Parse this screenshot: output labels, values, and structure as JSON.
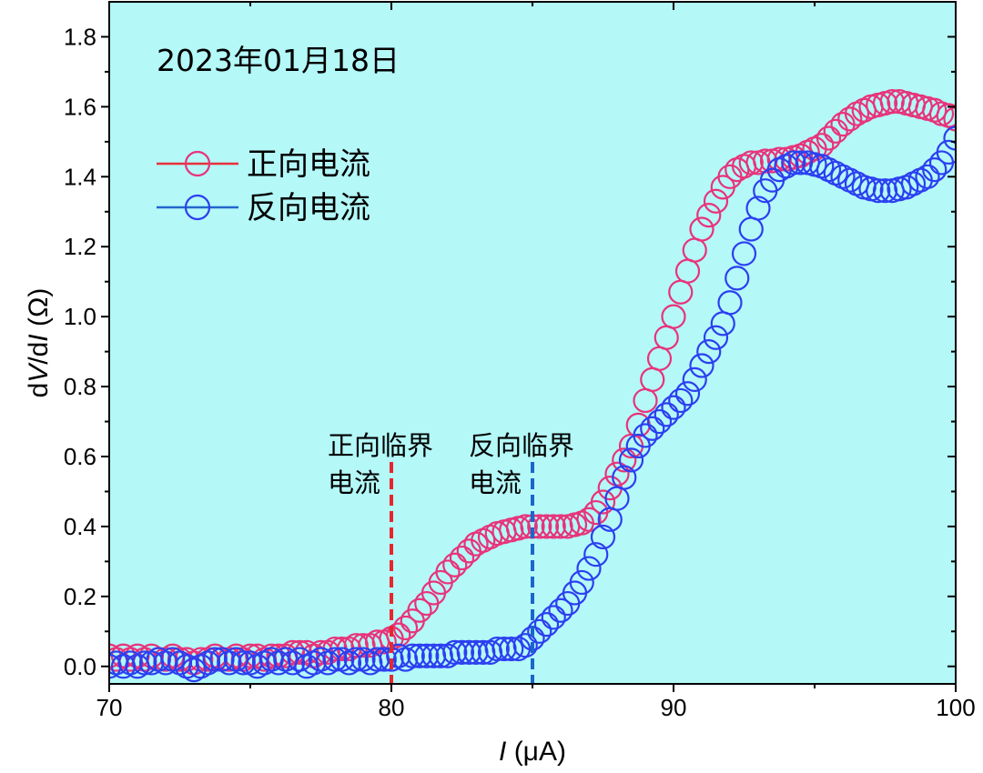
{
  "chart_data": {
    "type": "scatter",
    "xlabel": "I (μA)",
    "ylabel": "dV/dI (Ω)",
    "xlim": [
      70,
      100
    ],
    "ylim": [
      -0.05,
      1.9
    ],
    "xticks": [
      "70",
      "80",
      "90",
      "100"
    ],
    "yticks": [
      "0.0",
      "0.2",
      "0.4",
      "0.6",
      "0.8",
      "1.0",
      "1.2",
      "1.4",
      "1.6",
      "1.8"
    ],
    "grid": false,
    "legend_position": "top-left",
    "date_label": "2023年01月18日",
    "colors": {
      "plot_background": "#b4f8f8",
      "frame": "#000000"
    },
    "x": [
      70,
      70.25,
      70.5,
      70.75,
      71,
      71.25,
      71.5,
      71.75,
      72,
      72.25,
      72.5,
      72.75,
      73,
      73.25,
      73.5,
      73.75,
      74,
      74.25,
      74.5,
      74.75,
      75,
      75.25,
      75.5,
      75.75,
      76,
      76.25,
      76.5,
      76.75,
      77,
      77.25,
      77.5,
      77.75,
      78,
      78.25,
      78.5,
      78.75,
      79,
      79.25,
      79.5,
      79.75,
      80,
      80.25,
      80.5,
      80.75,
      81,
      81.25,
      81.5,
      81.75,
      82,
      82.25,
      82.5,
      82.75,
      83,
      83.25,
      83.5,
      83.75,
      84,
      84.25,
      84.5,
      84.75,
      85,
      85.25,
      85.5,
      85.75,
      86,
      86.25,
      86.5,
      86.75,
      87,
      87.25,
      87.5,
      87.75,
      88,
      88.25,
      88.5,
      88.75,
      89,
      89.25,
      89.5,
      89.75,
      90,
      90.25,
      90.5,
      90.75,
      91,
      91.25,
      91.5,
      91.75,
      92,
      92.25,
      92.5,
      92.75,
      93,
      93.25,
      93.5,
      93.75,
      94,
      94.25,
      94.5,
      94.75,
      95,
      95.25,
      95.5,
      95.75,
      96,
      96.25,
      96.5,
      96.75,
      97,
      97.25,
      97.5,
      97.75,
      98,
      98.25,
      98.5,
      98.75,
      99,
      99.25,
      99.5,
      99.75,
      100
    ],
    "series": [
      {
        "name": "正向电流",
        "marker": "open-circle",
        "color": "#e8337a",
        "line_color": "#e8303a",
        "values": [
          0.03,
          0.02,
          0.03,
          0.02,
          0.03,
          0.02,
          0.03,
          0.02,
          0.02,
          0.03,
          0.02,
          0.02,
          0.01,
          0.02,
          0.02,
          0.03,
          0.02,
          0.02,
          0.03,
          0.02,
          0.03,
          0.03,
          0.02,
          0.03,
          0.03,
          0.03,
          0.04,
          0.04,
          0.04,
          0.03,
          0.04,
          0.04,
          0.05,
          0.05,
          0.05,
          0.06,
          0.06,
          0.06,
          0.07,
          0.07,
          0.08,
          0.09,
          0.11,
          0.13,
          0.16,
          0.18,
          0.21,
          0.24,
          0.27,
          0.29,
          0.31,
          0.33,
          0.35,
          0.36,
          0.37,
          0.38,
          0.385,
          0.39,
          0.395,
          0.4,
          0.4,
          0.4,
          0.4,
          0.4,
          0.4,
          0.4,
          0.405,
          0.41,
          0.42,
          0.44,
          0.47,
          0.51,
          0.55,
          0.59,
          0.63,
          0.69,
          0.76,
          0.82,
          0.88,
          0.94,
          1.0,
          1.07,
          1.13,
          1.19,
          1.25,
          1.29,
          1.33,
          1.37,
          1.4,
          1.42,
          1.43,
          1.44,
          1.44,
          1.445,
          1.445,
          1.45,
          1.45,
          1.455,
          1.46,
          1.47,
          1.48,
          1.49,
          1.51,
          1.53,
          1.55,
          1.565,
          1.58,
          1.59,
          1.6,
          1.605,
          1.61,
          1.615,
          1.615,
          1.61,
          1.605,
          1.6,
          1.595,
          1.59,
          1.58,
          1.575,
          1.565
        ]
      },
      {
        "name": "反向电流",
        "marker": "open-circle",
        "color": "#2c3ff0",
        "line_color": "#2266cc",
        "values": [
          0.0,
          0.01,
          0.0,
          0.01,
          0.0,
          0.01,
          0.01,
          0.02,
          0.01,
          0.02,
          0.01,
          0.0,
          -0.01,
          0.0,
          0.01,
          0.02,
          0.02,
          0.01,
          0.02,
          0.01,
          0.01,
          0.0,
          0.01,
          0.02,
          0.01,
          0.02,
          0.01,
          0.02,
          0.0,
          0.01,
          0.02,
          0.01,
          0.02,
          0.02,
          0.01,
          0.02,
          0.02,
          0.01,
          0.02,
          0.02,
          0.02,
          0.03,
          0.02,
          0.03,
          0.03,
          0.03,
          0.03,
          0.03,
          0.03,
          0.04,
          0.04,
          0.04,
          0.04,
          0.04,
          0.04,
          0.05,
          0.05,
          0.05,
          0.05,
          0.06,
          0.08,
          0.1,
          0.12,
          0.14,
          0.16,
          0.18,
          0.21,
          0.24,
          0.28,
          0.32,
          0.37,
          0.42,
          0.48,
          0.54,
          0.59,
          0.63,
          0.66,
          0.68,
          0.7,
          0.72,
          0.74,
          0.76,
          0.78,
          0.82,
          0.86,
          0.9,
          0.94,
          0.98,
          1.04,
          1.11,
          1.18,
          1.25,
          1.31,
          1.36,
          1.39,
          1.42,
          1.43,
          1.44,
          1.44,
          1.44,
          1.435,
          1.43,
          1.42,
          1.41,
          1.4,
          1.39,
          1.38,
          1.37,
          1.365,
          1.36,
          1.36,
          1.36,
          1.365,
          1.37,
          1.38,
          1.39,
          1.4,
          1.42,
          1.44,
          1.47,
          1.51
        ]
      }
    ],
    "annotations": [
      {
        "lines": [
          "正向临界",
          "电流"
        ],
        "x": 80,
        "text_color": "#e8141c",
        "line_color": "#e8262b"
      },
      {
        "lines": [
          "反向临界",
          "电流"
        ],
        "x": 85,
        "text_color": "#1f63c7",
        "line_color": "#1a66cc"
      }
    ]
  }
}
